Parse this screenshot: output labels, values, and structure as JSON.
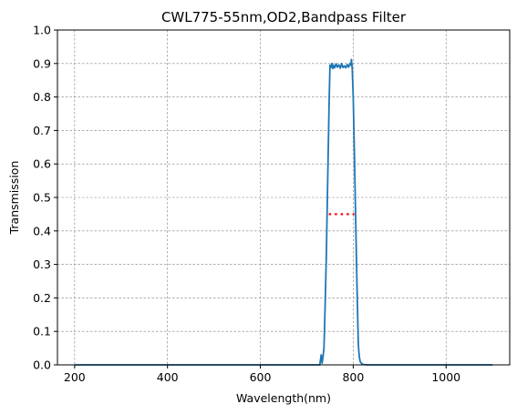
{
  "chart_data": {
    "type": "line",
    "title": "CWL775-55nm,OD2,Bandpass Filter",
    "xlabel": "Wavelength(nm)",
    "ylabel": "Transmission",
    "xlim": [
      163,
      1137
    ],
    "ylim": [
      0,
      1.0
    ],
    "x_ticks": [
      200,
      400,
      600,
      800,
      1000
    ],
    "x_tick_labels": [
      "200",
      "400",
      "600",
      "800",
      "1000"
    ],
    "y_ticks": [
      0.0,
      0.1,
      0.2,
      0.3,
      0.4,
      0.5,
      0.6,
      0.7,
      0.8,
      0.9,
      1.0
    ],
    "y_tick_labels": [
      "0.0",
      "0.1",
      "0.2",
      "0.3",
      "0.4",
      "0.5",
      "0.6",
      "0.7",
      "0.8",
      "0.9",
      "1.0"
    ],
    "grid": true,
    "series": [
      {
        "color": "#1f77b4",
        "style": "solid",
        "x": [
          200,
          700,
          728,
          731,
          733,
          735,
          737,
          739,
          742,
          745,
          748,
          750,
          752,
          754,
          756,
          758,
          760,
          763,
          766,
          769,
          772,
          775,
          778,
          781,
          784,
          787,
          790,
          793,
          795,
          796,
          797,
          798,
          800,
          803,
          806,
          809,
          811,
          813,
          815,
          818,
          822,
          830,
          1100
        ],
        "y": [
          0.0,
          0.0,
          0.0,
          0.03,
          0.005,
          0.025,
          0.05,
          0.15,
          0.32,
          0.55,
          0.78,
          0.895,
          0.888,
          0.9,
          0.885,
          0.895,
          0.887,
          0.899,
          0.889,
          0.896,
          0.886,
          0.9,
          0.888,
          0.893,
          0.887,
          0.897,
          0.889,
          0.9,
          0.895,
          0.912,
          0.9,
          0.88,
          0.8,
          0.6,
          0.38,
          0.18,
          0.06,
          0.025,
          0.01,
          0.004,
          0.001,
          0.0,
          0.0
        ]
      },
      {
        "color": "#ff0000",
        "style": "dotted",
        "x": [
          747.5,
          802.5
        ],
        "y": [
          0.45,
          0.45
        ]
      }
    ]
  }
}
